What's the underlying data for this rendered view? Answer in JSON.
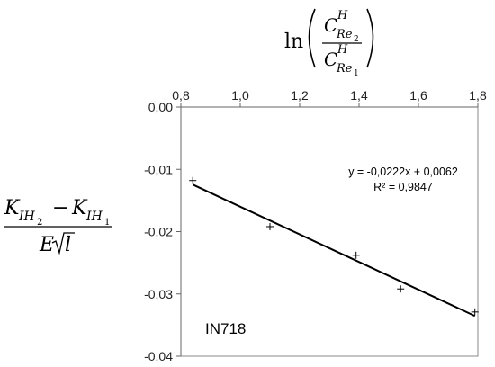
{
  "chart_data": {
    "type": "scatter",
    "title": "",
    "xlabel": {
      "prefix": "ln",
      "numerator": {
        "base": "C",
        "sup": "H",
        "sub": "Re",
        "subsub": "2"
      },
      "denominator": {
        "base": "C",
        "sup": "H",
        "sub": "Re",
        "subsub": "1"
      }
    },
    "ylabel": {
      "numerator": {
        "left": {
          "base": "K",
          "sub": "IH",
          "subsub": "2"
        },
        "op": "−",
        "right": {
          "base": "K",
          "sub": "IH",
          "subsub": "1"
        }
      },
      "denominator": {
        "base": "E",
        "radicand": "l"
      }
    },
    "xlim": [
      0.8,
      1.8
    ],
    "ylim": [
      -0.04,
      0.0
    ],
    "x_axis_position": "top",
    "x_ticks": [
      0.8,
      1.0,
      1.2,
      1.4,
      1.6,
      1.8
    ],
    "x_tick_labels": [
      "0,8",
      "1,0",
      "1,2",
      "1,4",
      "1,6",
      "1,8"
    ],
    "y_ticks": [
      0.0,
      -0.01,
      -0.02,
      -0.03,
      -0.04
    ],
    "y_tick_labels": [
      "0,00",
      "-0,01",
      "-0,02",
      "-0,03",
      "-0,04"
    ],
    "grid": false,
    "series": [
      {
        "marker": "+",
        "points": [
          {
            "x": 0.84,
            "y": -0.0118
          },
          {
            "x": 1.1,
            "y": -0.0192
          },
          {
            "x": 1.39,
            "y": -0.0238
          },
          {
            "x": 1.54,
            "y": -0.0292
          },
          {
            "x": 1.79,
            "y": -0.0329
          }
        ]
      }
    ],
    "trendline": {
      "slope": -0.0222,
      "intercept": 0.0062,
      "x_range": [
        0.84,
        1.79
      ],
      "equation": "y = -0,0222x + 0,0062",
      "r_squared": "R² = 0,9847"
    },
    "annotation": "IN718"
  }
}
